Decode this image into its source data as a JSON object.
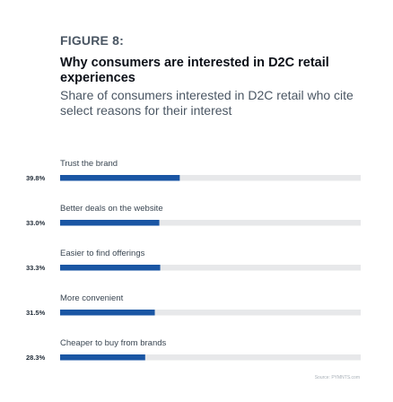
{
  "figure_label": "FIGURE 8:",
  "chart_data": {
    "type": "bar",
    "orientation": "horizontal",
    "title": "Why consumers are interested in D2C retail experiences",
    "subtitle": "Share of consumers interested in D2C retail who cite select reasons for their interest",
    "categories": [
      "Trust the brand",
      "Better deals on the website",
      "Easier to find offerings",
      "More convenient",
      "Cheaper to buy from brands"
    ],
    "values": [
      39.8,
      33.0,
      33.3,
      31.5,
      28.3
    ],
    "value_labels": [
      "39.8%",
      "33.0%",
      "33.3%",
      "31.5%",
      "28.3%"
    ],
    "xlim": [
      0,
      100
    ],
    "bar_color": "#1a56a4",
    "track_color": "#e7e8ea",
    "grid": false,
    "legend": "none"
  },
  "source": "Source: PYMNTS.com"
}
